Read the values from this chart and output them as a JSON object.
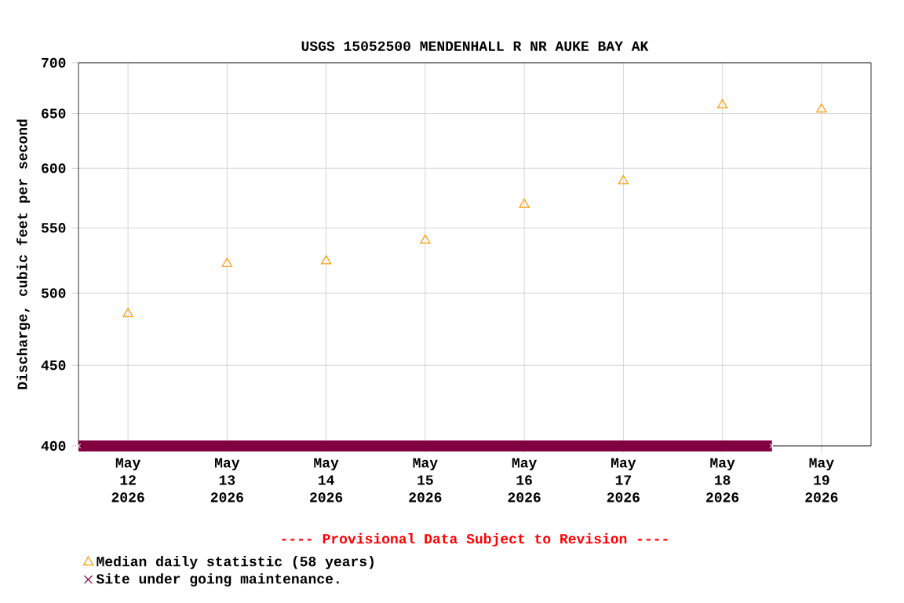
{
  "chart_data": {
    "type": "scatter",
    "title": "USGS 15052500 MENDENHALL R NR AUKE BAY AK",
    "ylabel": "Discharge, cubic feet per second",
    "annotations": [
      "---- Provisional Data Subject to Revision ----"
    ],
    "log": true,
    "grid": true,
    "legend": "bottom left",
    "xlim": [
      "2026-05-11T12:00",
      "2026-05-19T12:00"
    ],
    "xticks": [
      {
        "value": "2026-05-12",
        "label": "May 12 2026"
      },
      {
        "value": "2026-05-13",
        "label": "May 13 2026"
      },
      {
        "value": "2026-05-14",
        "label": "May 14 2026"
      },
      {
        "value": "2026-05-15",
        "label": "May 15 2026"
      },
      {
        "value": "2026-05-16",
        "label": "May 16 2026"
      },
      {
        "value": "2026-05-17",
        "label": "May 17 2026"
      },
      {
        "value": "2026-05-18",
        "label": "May 18 2026"
      },
      {
        "value": "2026-05-19",
        "label": "May 19 2026"
      }
    ],
    "ylim": [
      400,
      700
    ],
    "yticks": [
      400,
      450,
      500,
      550,
      600,
      650,
      700
    ],
    "series": [
      {
        "name": "Median daily statistic (58 years)",
        "marker": "triangle",
        "color": "#ff9900",
        "x": [
          "2026-05-12",
          "2026-05-13",
          "2026-05-14",
          "2026-05-15",
          "2026-05-16",
          "2026-05-17",
          "2026-05-18",
          "2026-05-19"
        ],
        "values": [
          485,
          522,
          524,
          540,
          569,
          589,
          658,
          654
        ]
      },
      {
        "name": "Site under going maintenance.",
        "type": "line",
        "marker": "cross",
        "color": "#800040",
        "x": [
          "2026-05-11T12:00",
          "2026-05-18T12:00"
        ],
        "values": [
          400,
          400
        ]
      }
    ]
  }
}
